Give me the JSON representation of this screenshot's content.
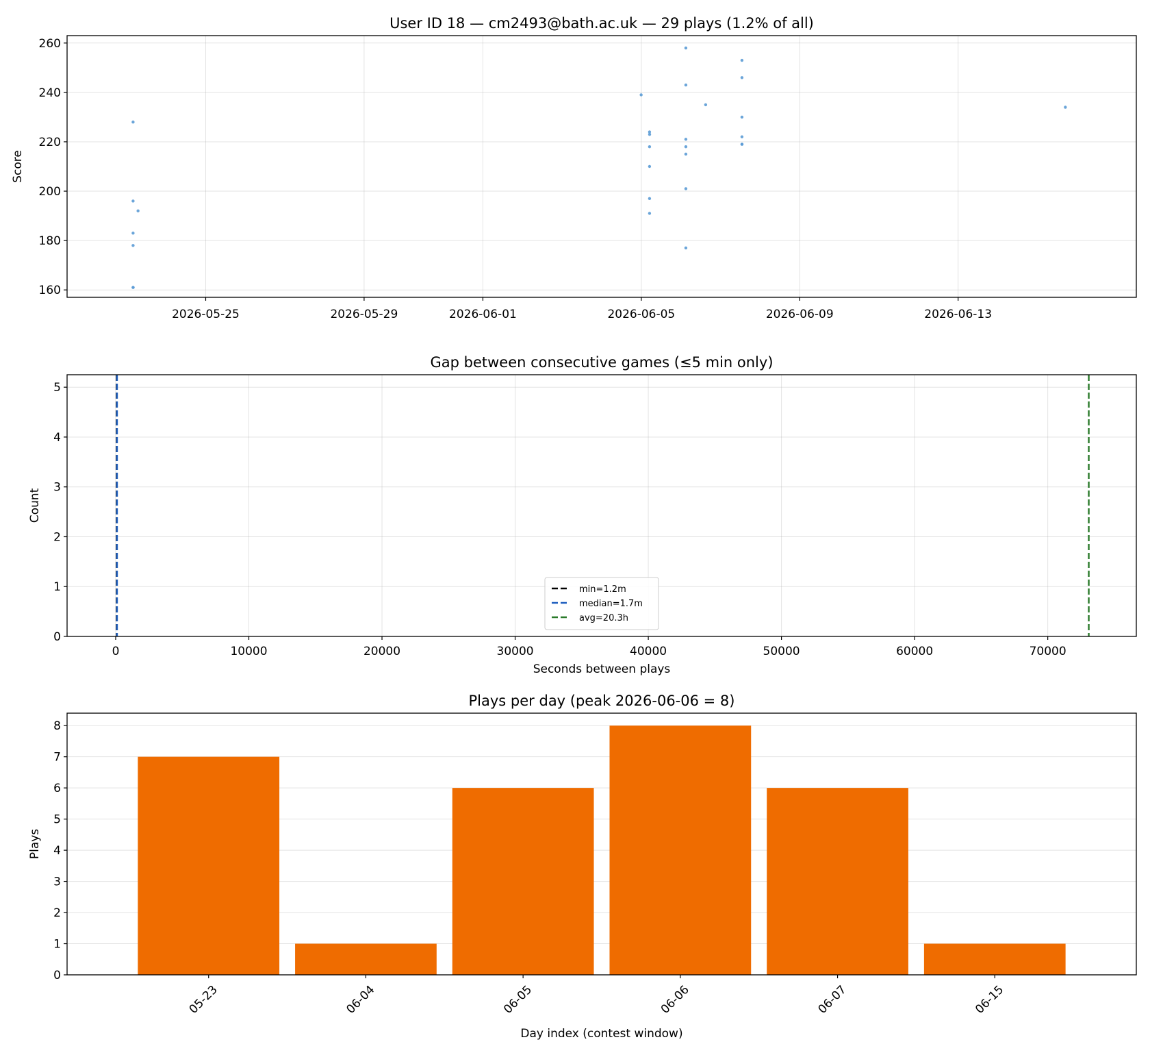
{
  "chart_data": [
    {
      "type": "scatter",
      "title": "User ID 18 — cm2493@bath.ac.uk — 29 plays (1.2% of all)",
      "xlabel": "",
      "ylabel": "Score",
      "x_axis_type": "date",
      "xlim": [
        "2026-05-21 12:00",
        "2026-06-17 12:00"
      ],
      "ylim": [
        157,
        263
      ],
      "x_ticks": [
        "2026-05-25",
        "2026-05-29",
        "2026-06-01",
        "2026-06-05",
        "2026-06-09",
        "2026-06-13"
      ],
      "y_ticks": [
        160,
        180,
        200,
        220,
        240,
        260
      ],
      "grid": true,
      "color": "#5b9bd5",
      "points": [
        {
          "x": "2026-05-23 04:00",
          "y": 228
        },
        {
          "x": "2026-05-23 04:00",
          "y": 196
        },
        {
          "x": "2026-05-23 04:00",
          "y": 183
        },
        {
          "x": "2026-05-23 04:00",
          "y": 178
        },
        {
          "x": "2026-05-23 04:00",
          "y": 161
        },
        {
          "x": "2026-05-23 04:02",
          "y": 161
        },
        {
          "x": "2026-05-23 07:00",
          "y": 192
        },
        {
          "x": "2026-06-04 23:55",
          "y": 239
        },
        {
          "x": "2026-06-05 05:00",
          "y": 224
        },
        {
          "x": "2026-06-05 05:02",
          "y": 223
        },
        {
          "x": "2026-06-05 05:00",
          "y": 218
        },
        {
          "x": "2026-06-05 05:00",
          "y": 210
        },
        {
          "x": "2026-06-05 05:00",
          "y": 197
        },
        {
          "x": "2026-06-05 05:00",
          "y": 191
        },
        {
          "x": "2026-06-06 03:00",
          "y": 258
        },
        {
          "x": "2026-06-06 03:00",
          "y": 243
        },
        {
          "x": "2026-06-06 03:00",
          "y": 221
        },
        {
          "x": "2026-06-06 03:00",
          "y": 218
        },
        {
          "x": "2026-06-06 03:00",
          "y": 215
        },
        {
          "x": "2026-06-06 03:00",
          "y": 201
        },
        {
          "x": "2026-06-06 03:00",
          "y": 177
        },
        {
          "x": "2026-06-06 15:00",
          "y": 235
        },
        {
          "x": "2026-06-07 13:00",
          "y": 253
        },
        {
          "x": "2026-06-07 13:00",
          "y": 246
        },
        {
          "x": "2026-06-07 13:00",
          "y": 230
        },
        {
          "x": "2026-06-07 13:00",
          "y": 222
        },
        {
          "x": "2026-06-07 13:00",
          "y": 219
        },
        {
          "x": "2026-06-07 13:02",
          "y": 219
        },
        {
          "x": "2026-06-15 17:00",
          "y": 234
        }
      ]
    },
    {
      "type": "histogram",
      "title": "Gap between consecutive games (≤5 min only)",
      "xlabel": "Seconds between plays",
      "ylabel": "Count",
      "xlim": [
        -3650,
        76650
      ],
      "ylim": [
        0,
        5.25
      ],
      "x_ticks": [
        0,
        10000,
        20000,
        30000,
        40000,
        50000,
        60000,
        70000
      ],
      "y_ticks": [
        0,
        1,
        2,
        3,
        4,
        5
      ],
      "grid": true,
      "vlines": [
        {
          "label": "min=1.2m",
          "x": 72,
          "color": "#000000"
        },
        {
          "label": "median=1.7m",
          "x": 102,
          "color": "#1f5fbf"
        },
        {
          "label": "avg=20.3h",
          "x": 73080,
          "color": "#2a7a2a"
        }
      ],
      "legend_position": "lower-center"
    },
    {
      "type": "bar",
      "title": "Plays per day (peak 2026-06-06 = 8)",
      "xlabel": "Day index (contest window)",
      "ylabel": "Plays",
      "categories": [
        "05-23",
        "06-04",
        "06-05",
        "06-06",
        "06-07",
        "06-15"
      ],
      "values": [
        7,
        1,
        6,
        8,
        6,
        1
      ],
      "ylim": [
        0,
        8.4
      ],
      "y_ticks": [
        0,
        1,
        2,
        3,
        4,
        5,
        6,
        7,
        8
      ],
      "grid": true,
      "color": "#ef6c00"
    }
  ]
}
